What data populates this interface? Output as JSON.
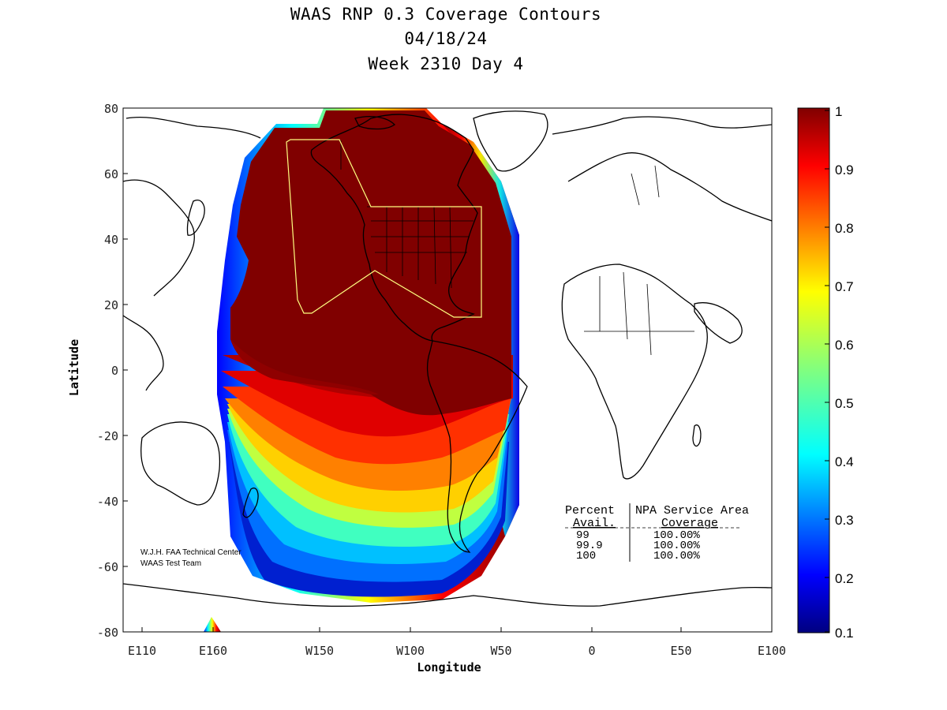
{
  "title": {
    "line1": "WAAS RNP 0.3 Coverage Contours",
    "line2": "04/18/24",
    "line3": "Week 2310 Day 4"
  },
  "axes": {
    "xlabel": "Longitude",
    "ylabel": "Latitude",
    "x_ticks": [
      "E110",
      "E160",
      "W150",
      "W100",
      "W50",
      "0",
      "E50",
      "E100"
    ],
    "y_ticks": [
      "80",
      "60",
      "40",
      "20",
      "0",
      "-20",
      "-40",
      "-60",
      "-80"
    ]
  },
  "colorbar": {
    "ticks": [
      "1",
      "0.9",
      "0.8",
      "0.7",
      "0.6",
      "0.5",
      "0.4",
      "0.3",
      "0.2",
      "0.1"
    ],
    "range": [
      0.1,
      1
    ],
    "colormap": "jet"
  },
  "credit": {
    "line1": "W.J.H. FAA Technical Center",
    "line2": "WAAS Test Team"
  },
  "coverage_table": {
    "header_left": "Percent",
    "header_right": "NPA Service Area",
    "sub_left": "Avail.",
    "sub_right": "Coverage",
    "rows": [
      {
        "avail": "99",
        "coverage": "100.00%"
      },
      {
        "avail": "99.9",
        "coverage": "100.00%"
      },
      {
        "avail": "100",
        "coverage": "100.00%"
      }
    ]
  },
  "colors": {
    "coverage_high": "#800000",
    "service_area_outline": "#ffff80"
  }
}
